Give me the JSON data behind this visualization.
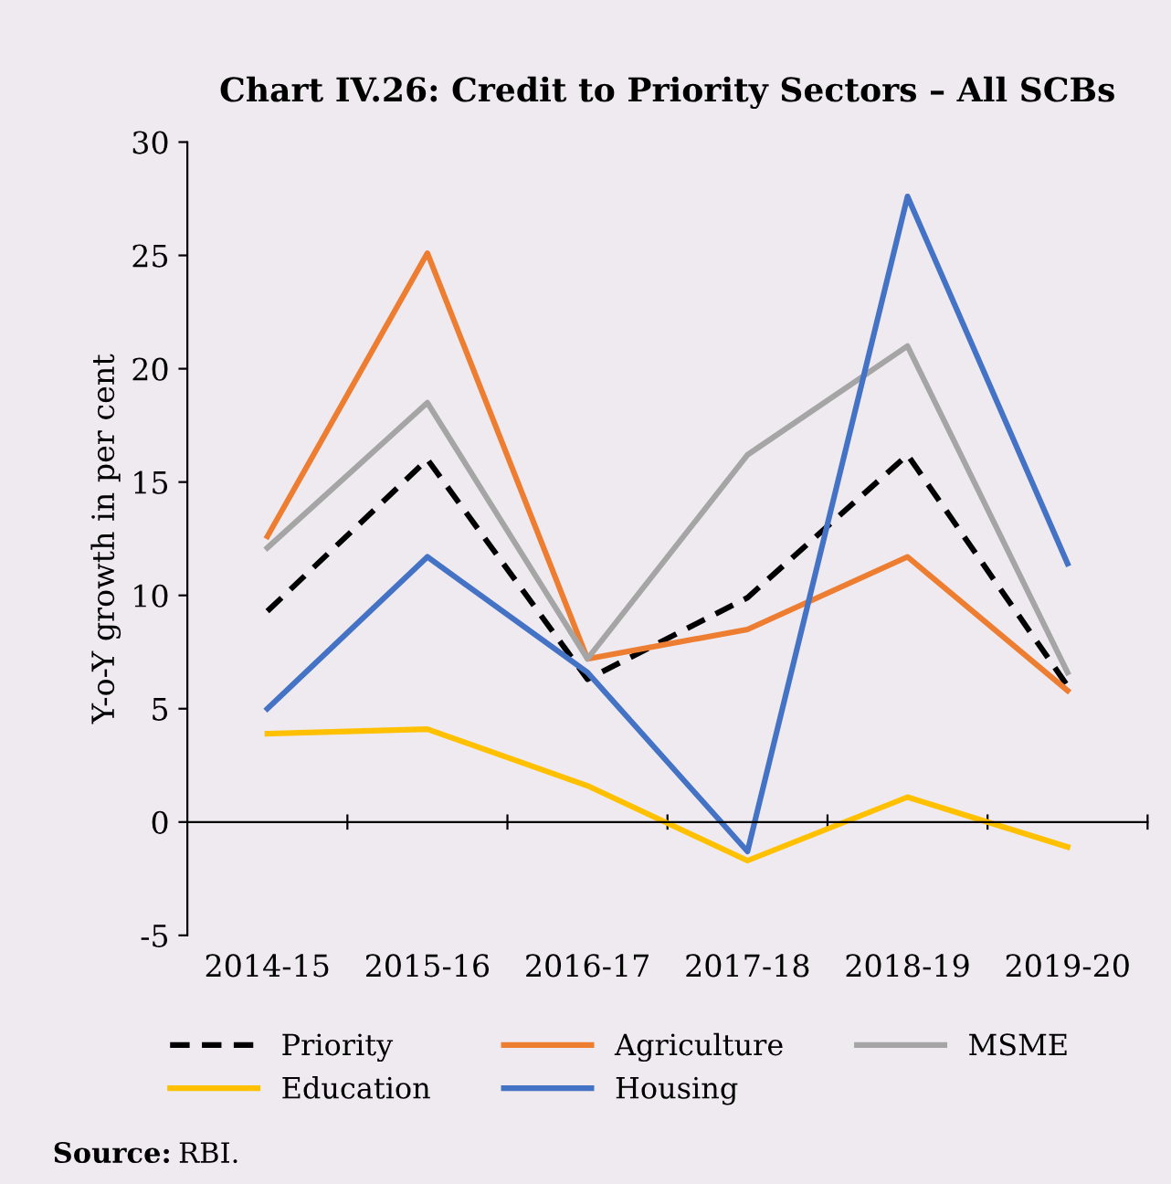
{
  "chart_data": {
    "type": "line",
    "title": "Chart IV.26: Credit to Priority Sectors – All SCBs",
    "ylabel": "Y-o-Y growth in per cent",
    "categories": [
      "2014-15",
      "2015-16",
      "2016-17",
      "2017-18",
      "2018-19",
      "2019-20"
    ],
    "series": [
      {
        "name": "Priority",
        "color": "#000000",
        "line_style": "dashed",
        "values": [
          9.3,
          16.0,
          6.3,
          9.9,
          16.2,
          6.0
        ]
      },
      {
        "name": "Agriculture",
        "color": "#ed7d31",
        "values": [
          12.6,
          25.1,
          7.2,
          8.5,
          11.7,
          5.8
        ]
      },
      {
        "name": "MSME",
        "color": "#a5a5a5",
        "values": [
          12.1,
          18.5,
          7.2,
          16.2,
          21.0,
          6.6
        ]
      },
      {
        "name": "Education",
        "color": "#ffc000",
        "values": [
          3.9,
          4.1,
          1.6,
          -1.7,
          1.1,
          -1.1
        ]
      },
      {
        "name": "Housing",
        "color": "#4472c4",
        "values": [
          5.0,
          11.7,
          6.6,
          -1.3,
          27.6,
          11.4
        ]
      }
    ],
    "ylim": [
      -5,
      30
    ],
    "yticks": [
      -5,
      0,
      5,
      10,
      15,
      20,
      25,
      30
    ],
    "legend": "bottom",
    "marker": "none",
    "annotations": [
      "Source: RBI."
    ]
  }
}
